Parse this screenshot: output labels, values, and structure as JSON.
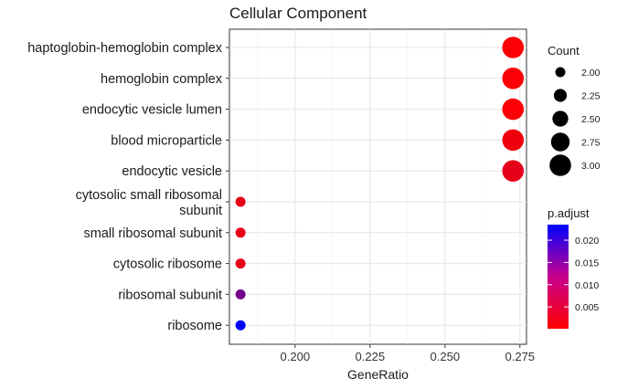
{
  "chart_data": {
    "type": "scatter",
    "title": "Cellular Component",
    "xlabel": "GeneRatio",
    "ylabel": "",
    "xlim": [
      0.1781,
      0.2772
    ],
    "x_ticks": [
      0.2,
      0.225,
      0.25,
      0.275
    ],
    "x_tick_labels": [
      "0.200",
      "0.225",
      "0.250",
      "0.275"
    ],
    "grid": true,
    "background": "#ffffff",
    "points": [
      {
        "term": "haptoglobin-hemoglobin complex",
        "x": 0.2727,
        "count": 3,
        "p_adjust": 0.0005
      },
      {
        "term": "hemoglobin complex",
        "x": 0.2727,
        "count": 3,
        "p_adjust": 0.0005
      },
      {
        "term": "endocytic vesicle lumen",
        "x": 0.2727,
        "count": 3,
        "p_adjust": 0.0005
      },
      {
        "term": "blood microparticle",
        "x": 0.2727,
        "count": 3,
        "p_adjust": 0.0015
      },
      {
        "term": "endocytic vesicle",
        "x": 0.2727,
        "count": 3,
        "p_adjust": 0.0025
      },
      {
        "term": "cytosolic small ribosomal subunit",
        "x": 0.1818,
        "count": 2,
        "p_adjust": 0.0022
      },
      {
        "term": "small ribosomal subunit",
        "x": 0.1818,
        "count": 2,
        "p_adjust": 0.0022
      },
      {
        "term": "cytosolic ribosome",
        "x": 0.1818,
        "count": 2,
        "p_adjust": 0.0022
      },
      {
        "term": "ribosomal subunit",
        "x": 0.1818,
        "count": 2,
        "p_adjust": 0.013
      },
      {
        "term": "ribosome",
        "x": 0.1818,
        "count": 2,
        "p_adjust": 0.0235
      }
    ],
    "size_legend": {
      "title": "Count",
      "values": [
        2.0,
        2.25,
        2.5,
        2.75,
        3.0
      ],
      "labels": [
        "2.00",
        "2.25",
        "2.50",
        "2.75",
        "3.00"
      ]
    },
    "color_legend": {
      "title": "p.adjust",
      "min": 0.0001,
      "max": 0.0235,
      "ticks": [
        0.02,
        0.015,
        0.01,
        0.005
      ],
      "tick_labels": [
        "0.020",
        "0.015",
        "0.010",
        "0.005"
      ],
      "low_color": "#ff0000",
      "high_color": "#0000ff"
    },
    "legend_placement": "right"
  }
}
